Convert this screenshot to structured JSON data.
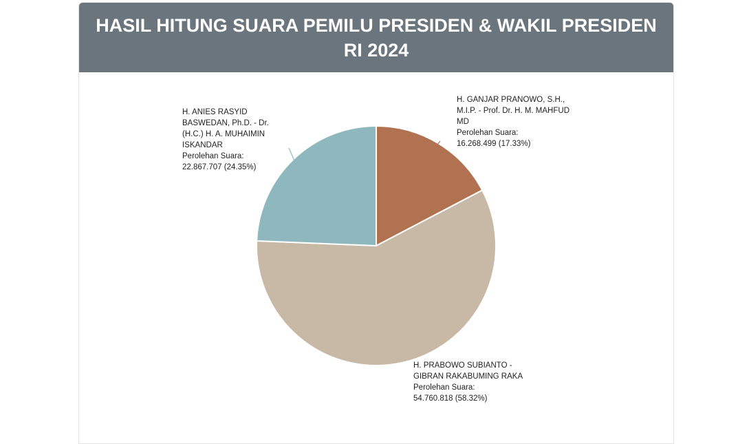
{
  "header": {
    "title": "HASIL HITUNG SUARA PEMILU PRESIDEN & WAKIL PRESIDEN RI 2024"
  },
  "chart_data": {
    "type": "pie",
    "title": "HASIL HITUNG SUARA PEMILU PRESIDEN & WAKIL PRESIDEN RI 2024",
    "start_angle_deg": 0,
    "direction": "clockwise",
    "slices": [
      {
        "name": "H. GANJAR PRANOWO, S.H., M.I.P. - Prof. Dr. H. M. MAHFUD MD",
        "votes": 16268499,
        "percent": 17.33,
        "color": "#b07251",
        "label_votes": "Perolehan Suara:",
        "label_value": "16.268.499 (17.33%)"
      },
      {
        "name": "H. PRABOWO SUBIANTO - GIBRAN RAKABUMING RAKA",
        "votes": 54760818,
        "percent": 58.32,
        "color": "#c8b8a6",
        "label_votes": "Perolehan Suara:",
        "label_value": "54.760.818 (58.32%)"
      },
      {
        "name": "H. ANIES RASYID BASWEDAN, Ph.D. - Dr. (H.C.) H. A. MUHAIMIN ISKANDAR",
        "votes": 22867707,
        "percent": 24.35,
        "color": "#8fb8be",
        "label_votes": "Perolehan Suara:",
        "label_value": "22.867.707 (24.35%)"
      }
    ]
  }
}
